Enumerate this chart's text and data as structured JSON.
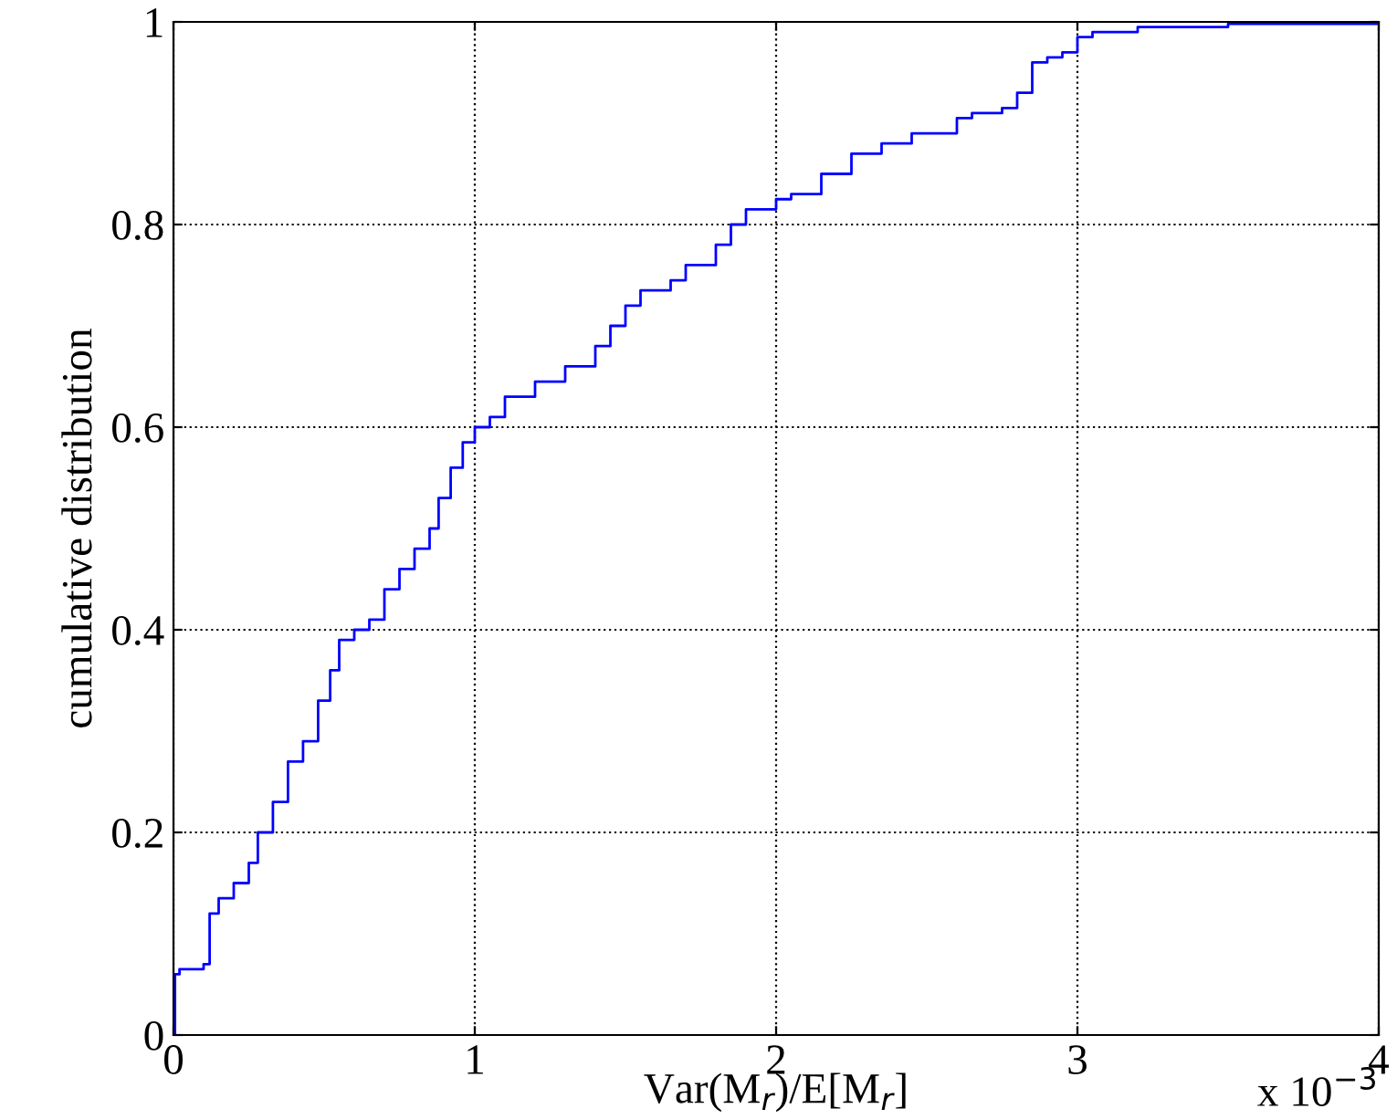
{
  "chart_data": {
    "type": "step",
    "xlabel": "Var(M$_{r}$)/E[M$_{r}$]",
    "ylabel": "cumulative distribution",
    "annotations": [
      "x 10$^{−3}$"
    ],
    "series": [
      {
        "color": "#0000ff",
        "x": [
          0,
          0.005,
          0.02,
          0.1,
          0.12,
          0.15,
          0.2,
          0.25,
          0.28,
          0.33,
          0.38,
          0.43,
          0.48,
          0.52,
          0.55,
          0.6,
          0.65,
          0.7,
          0.75,
          0.8,
          0.85,
          0.88,
          0.92,
          0.96,
          1.0,
          1.05,
          1.1,
          1.2,
          1.3,
          1.4,
          1.45,
          1.5,
          1.55,
          1.65,
          1.7,
          1.8,
          1.85,
          1.9,
          2.0,
          2.05,
          2.15,
          2.25,
          2.35,
          2.45,
          2.6,
          2.65,
          2.75,
          2.8,
          2.85,
          2.9,
          2.95,
          3.0,
          3.05,
          3.2,
          3.5,
          4.0
        ],
        "values": [
          0,
          0.06,
          0.065,
          0.07,
          0.12,
          0.135,
          0.15,
          0.17,
          0.2,
          0.23,
          0.27,
          0.29,
          0.33,
          0.36,
          0.39,
          0.4,
          0.41,
          0.44,
          0.46,
          0.48,
          0.5,
          0.53,
          0.56,
          0.585,
          0.6,
          0.61,
          0.63,
          0.645,
          0.66,
          0.68,
          0.7,
          0.72,
          0.735,
          0.745,
          0.76,
          0.78,
          0.8,
          0.815,
          0.825,
          0.83,
          0.85,
          0.87,
          0.88,
          0.89,
          0.905,
          0.91,
          0.915,
          0.93,
          0.96,
          0.965,
          0.97,
          0.985,
          0.99,
          0.995,
          0.998,
          1.0
        ]
      }
    ],
    "xlim": [
      0,
      4
    ],
    "ylim": [
      0,
      1
    ],
    "xticks": [
      0,
      1,
      2,
      3,
      4
    ],
    "yticks": [
      0,
      0.2,
      0.4,
      0.6,
      0.8,
      1
    ],
    "grid": true,
    "line_style": "solid"
  }
}
